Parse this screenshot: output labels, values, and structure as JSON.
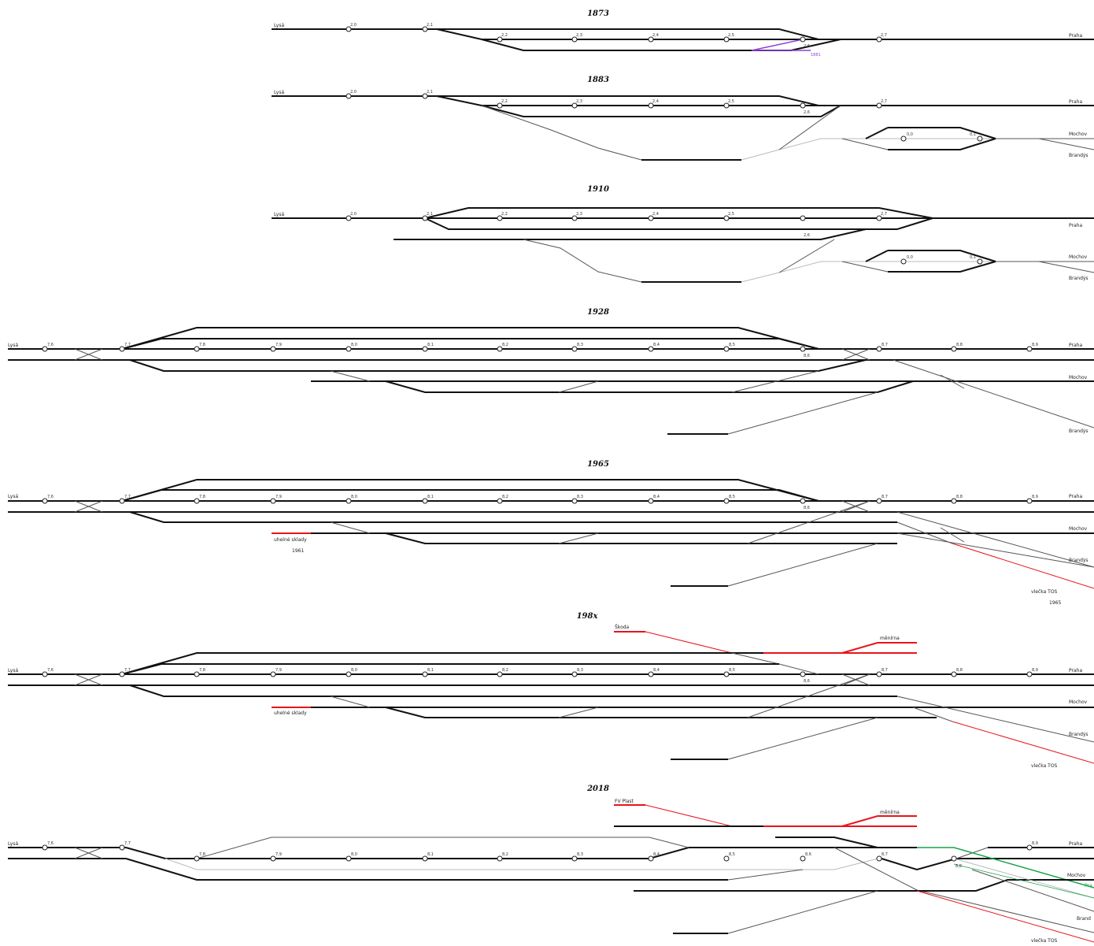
{
  "years": [
    "1873",
    "1883",
    "1910",
    "1928",
    "1965",
    "198x",
    "2018"
  ],
  "destinations": {
    "lysa": "Lysá",
    "praha": "Praha",
    "mochov": "Mochov",
    "brandys": "Brandýs",
    "brandys_short": "Brand",
    "praha_short": "Pra"
  },
  "km_marks": {
    "d1873": [
      "2,0",
      "2,1",
      "2,2",
      "2,3",
      "2,4",
      "2,5",
      "2,6",
      "2,7"
    ],
    "d1883_main": [
      "2,0",
      "2,1",
      "2,2",
      "2,3",
      "2,4",
      "2,5",
      "2,6",
      "2,7"
    ],
    "d1883_loop": [
      "0,0",
      "0,1"
    ],
    "d1910_main": [
      "2,0",
      "2,1",
      "2,2",
      "2,3",
      "2,4",
      "2,5",
      "2,6",
      "2,7"
    ],
    "d1910_loop": [
      "0,0",
      "0,1"
    ],
    "modern": [
      "7,6",
      "7,7",
      "7,8",
      "7,9",
      "8,0",
      "8,1",
      "8,2",
      "8,3",
      "8,4",
      "8,5",
      "8,6",
      "8,7",
      "8,8",
      "8,9"
    ],
    "d2018": [
      "7,6",
      "7,7",
      "7,8",
      "7,9",
      "8,0",
      "8,1",
      "8,2",
      "8,3",
      "8,4",
      "8,5",
      "8,6",
      "8,7",
      "8,8",
      "8,9"
    ]
  },
  "annotations": {
    "purple_year": "1881",
    "coal_depot": "uhelné sklady",
    "coal_depot_year": "1961",
    "siding_tos": "vlečka TOS",
    "siding_tos_year": "1965",
    "skoda": "Škoda",
    "menirna": "měnírna",
    "fv_plast": "FV Plast"
  },
  "colors": {
    "track": "#111111",
    "thin_track": "#555555",
    "new_track": "#e8141c",
    "green_track": "#16a34a",
    "purple_track": "#8e3fd6"
  }
}
